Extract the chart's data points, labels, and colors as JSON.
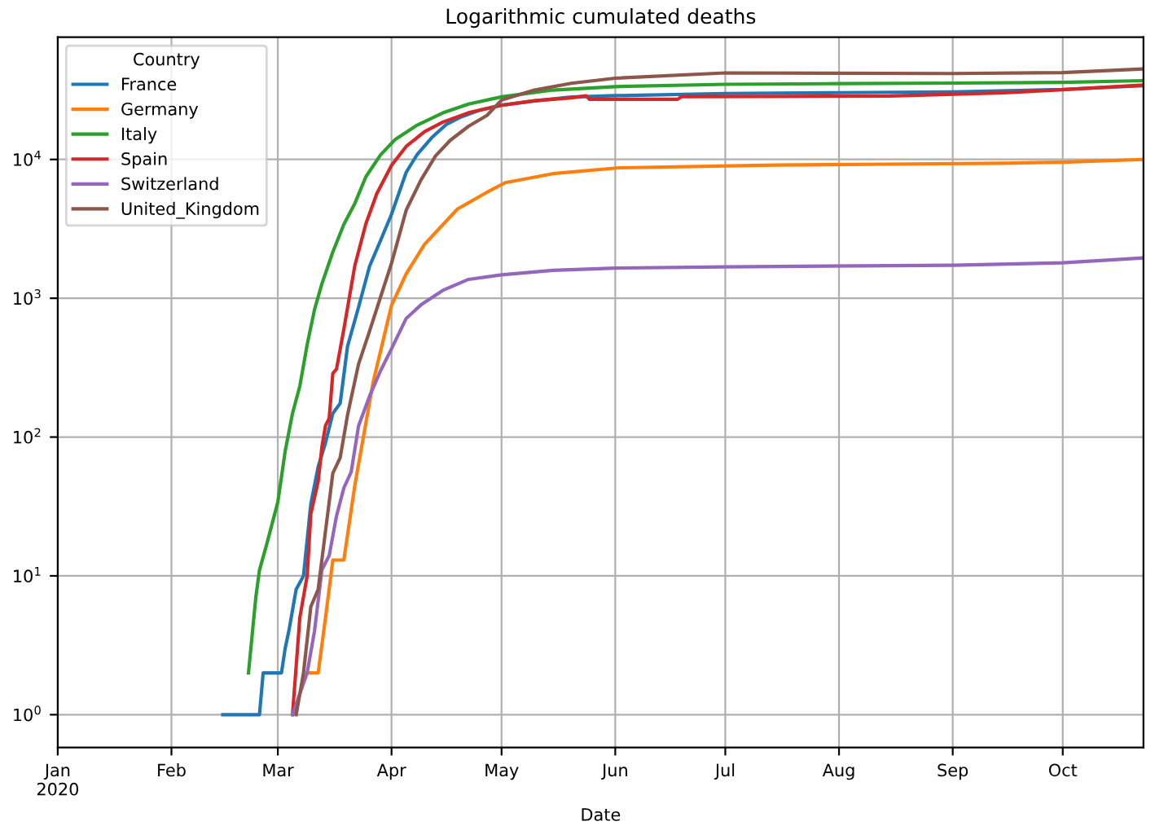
{
  "chart_data": {
    "type": "line",
    "title": "Logarithmic cumulated deaths",
    "xlabel": "Date",
    "legend_title": "Country",
    "legend": "top left",
    "grid": true,
    "log": "y",
    "xlim": [
      "2020-01-01",
      "2020-10-23"
    ],
    "xticks": [
      {
        "value": "2020-01-01",
        "label": "Jan\n2020"
      },
      {
        "value": "2020-02-01",
        "label": "Feb"
      },
      {
        "value": "2020-03-01",
        "label": "Mar"
      },
      {
        "value": "2020-04-01",
        "label": "Apr"
      },
      {
        "value": "2020-05-01",
        "label": "May"
      },
      {
        "value": "2020-06-01",
        "label": "Jun"
      },
      {
        "value": "2020-07-01",
        "label": "Jul"
      },
      {
        "value": "2020-08-01",
        "label": "Aug"
      },
      {
        "value": "2020-09-01",
        "label": "Sep"
      },
      {
        "value": "2020-10-01",
        "label": "Oct"
      }
    ],
    "ylim": [
      0.58,
      76000
    ],
    "yticks": [
      {
        "value": 1,
        "label": "10$^{0}$"
      },
      {
        "value": 10,
        "label": "10$^{1}$"
      },
      {
        "value": 100,
        "label": "10$^{2}$"
      },
      {
        "value": 1000,
        "label": "10$^{3}$"
      },
      {
        "value": 10000,
        "label": "10$^{4}$"
      }
    ],
    "series": [
      {
        "name": "France",
        "color": "#1f77b4",
        "x": [
          "2020-02-15",
          "2020-02-25",
          "2020-02-26",
          "2020-03-02",
          "2020-03-03",
          "2020-03-04",
          "2020-03-06",
          "2020-03-08",
          "2020-03-10",
          "2020-03-12",
          "2020-03-14",
          "2020-03-16",
          "2020-03-18",
          "2020-03-20",
          "2020-03-23",
          "2020-03-26",
          "2020-03-29",
          "2020-04-01",
          "2020-04-05",
          "2020-04-08",
          "2020-04-12",
          "2020-04-16",
          "2020-04-20",
          "2020-04-25",
          "2020-05-01",
          "2020-05-10",
          "2020-05-20",
          "2020-06-01",
          "2020-07-01",
          "2020-08-01",
          "2020-09-01",
          "2020-10-01",
          "2020-10-23"
        ],
        "values": [
          1,
          1,
          2,
          2,
          3,
          4,
          8,
          10,
          33,
          61,
          91,
          148,
          175,
          450,
          860,
          1696,
          2606,
          4032,
          8078,
          10869,
          14393,
          17920,
          20265,
          22614,
          24594,
          26380,
          28132,
          28805,
          29861,
          30265,
          30635,
          31956,
          34048
        ]
      },
      {
        "name": "Germany",
        "color": "#ff7f0e",
        "x": [
          "2020-03-09",
          "2020-03-12",
          "2020-03-14",
          "2020-03-16",
          "2020-03-19",
          "2020-03-22",
          "2020-03-27",
          "2020-04-01",
          "2020-04-05",
          "2020-04-10",
          "2020-04-19",
          "2020-04-28",
          "2020-05-02",
          "2020-05-15",
          "2020-06-02",
          "2020-07-15",
          "2020-08-15",
          "2020-09-15",
          "2020-10-01",
          "2020-10-23"
        ],
        "values": [
          2,
          2,
          5,
          13,
          13,
          45,
          250,
          890,
          1500,
          2450,
          4400,
          6000,
          6800,
          7900,
          8700,
          9100,
          9250,
          9400,
          9550,
          10000
        ]
      },
      {
        "name": "Italy",
        "color": "#2ca02c",
        "x": [
          "2020-02-22",
          "2020-02-24",
          "2020-02-25",
          "2020-02-27",
          "2020-03-01",
          "2020-03-03",
          "2020-03-05",
          "2020-03-07",
          "2020-03-09",
          "2020-03-11",
          "2020-03-13",
          "2020-03-16",
          "2020-03-19",
          "2020-03-22",
          "2020-03-25",
          "2020-03-29",
          "2020-04-02",
          "2020-04-08",
          "2020-04-15",
          "2020-04-22",
          "2020-05-01",
          "2020-05-15",
          "2020-06-01",
          "2020-07-01",
          "2020-08-01",
          "2020-09-01",
          "2020-10-01",
          "2020-10-23"
        ],
        "values": [
          2,
          7,
          11,
          17,
          34,
          79,
          148,
          233,
          463,
          827,
          1266,
          2158,
          3405,
          4825,
          7503,
          10779,
          13915,
          17669,
          21645,
          25085,
          28236,
          31610,
          33475,
          34767,
          35146,
          35483,
          35918,
          36968
        ]
      },
      {
        "name": "Spain",
        "color": "#d62728",
        "x": [
          "2020-03-05",
          "2020-03-07",
          "2020-03-09",
          "2020-03-10",
          "2020-03-12",
          "2020-03-13",
          "2020-03-14",
          "2020-03-15",
          "2020-03-16",
          "2020-03-17",
          "2020-03-19",
          "2020-03-22",
          "2020-03-25",
          "2020-03-28",
          "2020-04-01",
          "2020-04-05",
          "2020-04-10",
          "2020-04-15",
          "2020-04-22",
          "2020-05-01",
          "2020-05-10",
          "2020-05-20",
          "2020-05-24",
          "2020-05-25",
          "2020-06-18",
          "2020-06-19",
          "2020-07-15",
          "2020-08-15",
          "2020-09-15",
          "2020-10-01",
          "2020-10-23"
        ],
        "values": [
          1,
          5,
          10,
          28,
          48,
          84,
          121,
          136,
          288,
          309,
          598,
          1720,
          3434,
          5690,
          9053,
          12418,
          15843,
          18579,
          21717,
          24543,
          26478,
          27778,
          28752,
          27117,
          27136,
          28315,
          28413,
          28617,
          30243,
          31791,
          34366
        ]
      },
      {
        "name": "Switzerland",
        "color": "#9467bd",
        "x": [
          "2020-03-05",
          "2020-03-09",
          "2020-03-11",
          "2020-03-13",
          "2020-03-15",
          "2020-03-17",
          "2020-03-19",
          "2020-03-21",
          "2020-03-23",
          "2020-03-26",
          "2020-03-29",
          "2020-04-01",
          "2020-04-05",
          "2020-04-09",
          "2020-04-15",
          "2020-04-22",
          "2020-05-01",
          "2020-05-15",
          "2020-06-01",
          "2020-07-01",
          "2020-09-01",
          "2020-10-01",
          "2020-10-23"
        ],
        "values": [
          1,
          2,
          4,
          11,
          14,
          27,
          43,
          56,
          120,
          197,
          300,
          433,
          715,
          895,
          1140,
          1368,
          1476,
          1590,
          1650,
          1683,
          1730,
          1800,
          1950
        ]
      },
      {
        "name": "United_Kingdom",
        "color": "#8c564b",
        "x": [
          "2020-03-06",
          "2020-03-08",
          "2020-03-10",
          "2020-03-12",
          "2020-03-14",
          "2020-03-16",
          "2020-03-18",
          "2020-03-20",
          "2020-03-23",
          "2020-03-26",
          "2020-03-29",
          "2020-04-01",
          "2020-04-05",
          "2020-04-09",
          "2020-04-13",
          "2020-04-17",
          "2020-04-22",
          "2020-04-27",
          "2020-05-01",
          "2020-05-10",
          "2020-05-20",
          "2020-06-01",
          "2020-07-01",
          "2020-09-01",
          "2020-10-01",
          "2020-10-23"
        ],
        "values": [
          1,
          2,
          6,
          8,
          21,
          55,
          71,
          144,
          335,
          578,
          1019,
          1789,
          4313,
          7097,
          10612,
          13729,
          17337,
          20732,
          26771,
          31587,
          35341,
          38489,
          42000,
          41600,
          42200,
          44900
        ]
      }
    ]
  }
}
